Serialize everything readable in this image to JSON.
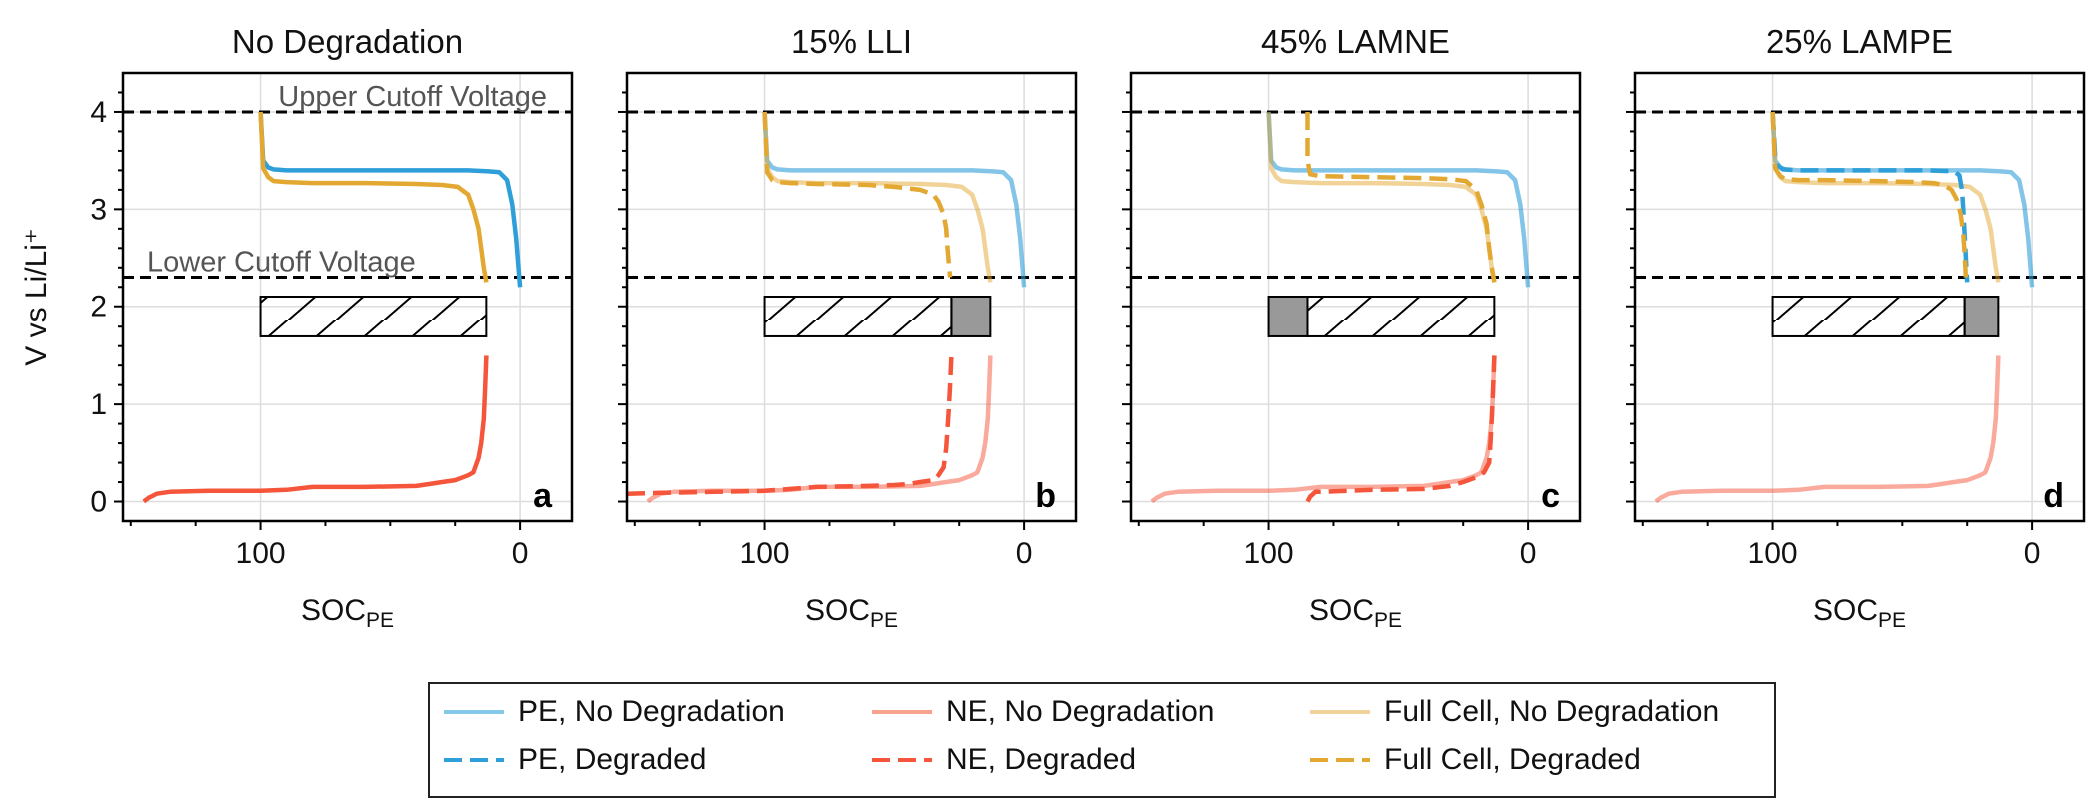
{
  "colors": {
    "pe": "#2e9fd8",
    "ne": "#f5553a",
    "full": "#e3a832",
    "cutoff": "#000000",
    "grid": "#dddddd",
    "bar_fill": "#999999"
  },
  "y_label": "V vs Li/Li⁺",
  "x_label_main": "SOC",
  "x_label_sub": "PE",
  "annotations": {
    "upper": "Upper Cutoff Voltage",
    "lower": "Lower Cutoff Voltage"
  },
  "legend": {
    "items": [
      {
        "label": "PE, No Degradation",
        "color": "#86c8ea",
        "dash": false
      },
      {
        "label": "NE, No Degradation",
        "color": "#f8a290",
        "dash": false
      },
      {
        "label": "Full Cell, No Degradation",
        "color": "#f1d39b",
        "dash": false
      },
      {
        "label": "PE, Degraded",
        "color": "#2e9fd8",
        "dash": true
      },
      {
        "label": "NE, Degraded",
        "color": "#f5553a",
        "dash": true
      },
      {
        "label": "Full Cell, Degraded",
        "color": "#e3a832",
        "dash": true
      }
    ]
  },
  "chart_data": [
    {
      "type": "line",
      "title": "No Degradation",
      "panel_label": "a",
      "xlim": [
        153,
        -20
      ],
      "ylim": [
        -0.2,
        4.4
      ],
      "xticks": [
        100,
        0
      ],
      "yticks": [
        0,
        1,
        2,
        3,
        4
      ],
      "cutoffs": [
        4.0,
        2.3
      ],
      "capacity_bar": {
        "x_start": 100,
        "x_end": 13,
        "y": 1.9,
        "lost_left": 0,
        "lost_right": 0
      },
      "series": [
        {
          "role": "pe",
          "style": "solid",
          "alpha": 1,
          "x": [
            100,
            99,
            97,
            95,
            90,
            80,
            60,
            40,
            20,
            12,
            8,
            5,
            3,
            1.5,
            0
          ],
          "y": [
            4.0,
            3.5,
            3.43,
            3.41,
            3.4,
            3.4,
            3.4,
            3.4,
            3.4,
            3.39,
            3.38,
            3.3,
            3.05,
            2.7,
            2.2
          ]
        },
        {
          "role": "full",
          "style": "solid",
          "alpha": 1,
          "x": [
            100,
            99,
            97,
            95,
            90,
            80,
            60,
            40,
            30,
            24,
            20,
            18,
            16,
            15,
            14,
            13
          ],
          "y": [
            4.0,
            3.42,
            3.33,
            3.29,
            3.28,
            3.27,
            3.27,
            3.26,
            3.25,
            3.23,
            3.15,
            3.0,
            2.8,
            2.6,
            2.4,
            2.25
          ]
        },
        {
          "role": "ne",
          "style": "solid",
          "alpha": 1,
          "x": [
            145,
            143,
            140,
            135,
            120,
            100,
            90,
            80,
            60,
            40,
            35,
            30,
            25,
            22,
            20,
            18,
            16,
            15,
            14,
            13.5,
            13
          ],
          "y": [
            0,
            0.04,
            0.08,
            0.1,
            0.11,
            0.11,
            0.12,
            0.15,
            0.15,
            0.16,
            0.18,
            0.2,
            0.22,
            0.25,
            0.27,
            0.3,
            0.45,
            0.6,
            0.85,
            1.15,
            1.5
          ]
        }
      ]
    },
    {
      "type": "line",
      "title": "15% LLI",
      "panel_label": "b",
      "xlim": [
        153,
        -20
      ],
      "ylim": [
        -0.2,
        4.4
      ],
      "xticks": [
        100,
        0
      ],
      "yticks": [
        0,
        1,
        2,
        3,
        4
      ],
      "cutoffs": [
        4.0,
        2.3
      ],
      "capacity_bar": {
        "x_start": 100,
        "x_end": 13,
        "y": 1.9,
        "lost_left": 0,
        "lost_right": 15
      },
      "series": [
        {
          "role": "pe",
          "style": "solid",
          "alpha": 0.6,
          "x": [
            100,
            99,
            97,
            95,
            90,
            80,
            60,
            40,
            20,
            12,
            8,
            5,
            3,
            1.5,
            0
          ],
          "y": [
            4.0,
            3.5,
            3.43,
            3.41,
            3.4,
            3.4,
            3.4,
            3.4,
            3.4,
            3.39,
            3.38,
            3.3,
            3.05,
            2.7,
            2.2
          ]
        },
        {
          "role": "full",
          "style": "solid",
          "alpha": 0.5,
          "x": [
            100,
            99,
            97,
            95,
            90,
            80,
            60,
            40,
            30,
            24,
            20,
            18,
            16,
            15,
            14,
            13
          ],
          "y": [
            4.0,
            3.42,
            3.33,
            3.29,
            3.28,
            3.27,
            3.27,
            3.26,
            3.25,
            3.23,
            3.15,
            3.0,
            2.8,
            2.6,
            2.4,
            2.25
          ]
        },
        {
          "role": "ne",
          "style": "solid",
          "alpha": 0.5,
          "x": [
            145,
            143,
            140,
            135,
            120,
            100,
            90,
            80,
            60,
            40,
            35,
            30,
            25,
            22,
            20,
            18,
            16,
            15,
            14,
            13.5,
            13
          ],
          "y": [
            0,
            0.04,
            0.08,
            0.1,
            0.11,
            0.11,
            0.12,
            0.15,
            0.15,
            0.16,
            0.18,
            0.2,
            0.22,
            0.25,
            0.27,
            0.3,
            0.45,
            0.6,
            0.85,
            1.15,
            1.5
          ]
        },
        {
          "role": "full",
          "style": "dashed",
          "alpha": 1,
          "x": [
            100,
            99,
            97,
            95,
            90,
            80,
            60,
            50,
            40,
            35,
            33,
            31,
            30,
            29.5,
            29,
            28.5
          ],
          "y": [
            4.0,
            3.38,
            3.3,
            3.28,
            3.27,
            3.26,
            3.25,
            3.23,
            3.2,
            3.15,
            3.08,
            2.95,
            2.8,
            2.6,
            2.45,
            2.3
          ]
        },
        {
          "role": "ne",
          "style": "dashed",
          "alpha": 1,
          "x": [
            153,
            140,
            120,
            100,
            90,
            80,
            60,
            50,
            45,
            40,
            35,
            33,
            31,
            30,
            29.5,
            29,
            28.5,
            28
          ],
          "y": [
            0.08,
            0.09,
            0.1,
            0.11,
            0.13,
            0.15,
            0.16,
            0.17,
            0.18,
            0.2,
            0.22,
            0.27,
            0.35,
            0.55,
            0.75,
            0.95,
            1.2,
            1.5
          ]
        }
      ]
    },
    {
      "type": "line",
      "title": "45% LAMNE",
      "panel_label": "c",
      "xlim": [
        153,
        -20
      ],
      "ylim": [
        -0.2,
        4.4
      ],
      "xticks": [
        100,
        0
      ],
      "yticks": [
        0,
        1,
        2,
        3,
        4
      ],
      "cutoffs": [
        4.0,
        2.3
      ],
      "capacity_bar": {
        "x_start": 100,
        "x_end": 13,
        "y": 1.9,
        "lost_left": 15,
        "lost_right": 0
      },
      "series": [
        {
          "role": "pe",
          "style": "solid",
          "alpha": 0.6,
          "x": [
            100,
            99,
            97,
            95,
            90,
            80,
            60,
            40,
            20,
            12,
            8,
            5,
            3,
            1.5,
            0
          ],
          "y": [
            4.0,
            3.5,
            3.43,
            3.41,
            3.4,
            3.4,
            3.4,
            3.4,
            3.4,
            3.39,
            3.38,
            3.3,
            3.05,
            2.7,
            2.2
          ]
        },
        {
          "role": "full",
          "style": "solid",
          "alpha": 0.5,
          "x": [
            100,
            99,
            97,
            95,
            90,
            80,
            60,
            40,
            30,
            24,
            20,
            18,
            16,
            15,
            14,
            13
          ],
          "y": [
            4.0,
            3.42,
            3.33,
            3.29,
            3.28,
            3.27,
            3.27,
            3.26,
            3.25,
            3.23,
            3.15,
            3.0,
            2.8,
            2.6,
            2.4,
            2.25
          ]
        },
        {
          "role": "ne",
          "style": "solid",
          "alpha": 0.5,
          "x": [
            145,
            143,
            140,
            135,
            120,
            100,
            90,
            80,
            60,
            40,
            35,
            30,
            25,
            22,
            20,
            18,
            16,
            15,
            14,
            13.5,
            13
          ],
          "y": [
            0,
            0.04,
            0.08,
            0.1,
            0.11,
            0.11,
            0.12,
            0.15,
            0.15,
            0.16,
            0.18,
            0.2,
            0.22,
            0.25,
            0.27,
            0.3,
            0.45,
            0.6,
            0.85,
            1.15,
            1.5
          ]
        },
        {
          "role": "full",
          "style": "dashed",
          "alpha": 1,
          "x": [
            85,
            85,
            84,
            80,
            60,
            40,
            30,
            24,
            20,
            18,
            16,
            15,
            14,
            13
          ],
          "y": [
            4.0,
            3.5,
            3.36,
            3.34,
            3.33,
            3.32,
            3.31,
            3.29,
            3.2,
            3.05,
            2.85,
            2.6,
            2.4,
            2.25
          ]
        },
        {
          "role": "ne",
          "style": "dashed",
          "alpha": 1,
          "x": [
            85,
            84,
            82,
            80,
            60,
            40,
            30,
            25,
            20,
            17,
            15,
            14.5,
            14,
            13.5,
            13
          ],
          "y": [
            0,
            0.05,
            0.1,
            0.1,
            0.12,
            0.13,
            0.16,
            0.2,
            0.25,
            0.3,
            0.4,
            0.6,
            0.85,
            1.15,
            1.5
          ]
        }
      ]
    },
    {
      "type": "line",
      "title": "25% LAMPE",
      "panel_label": "d",
      "xlim": [
        153,
        -20
      ],
      "ylim": [
        -0.2,
        4.4
      ],
      "xticks": [
        100,
        0
      ],
      "yticks": [
        0,
        1,
        2,
        3,
        4
      ],
      "cutoffs": [
        4.0,
        2.3
      ],
      "capacity_bar": {
        "x_start": 100,
        "x_end": 13,
        "y": 1.9,
        "lost_left": 0,
        "lost_right": 13
      },
      "series": [
        {
          "role": "pe",
          "style": "solid",
          "alpha": 0.6,
          "x": [
            100,
            99,
            97,
            95,
            90,
            80,
            60,
            40,
            20,
            12,
            8,
            5,
            3,
            1.5,
            0
          ],
          "y": [
            4.0,
            3.5,
            3.43,
            3.41,
            3.4,
            3.4,
            3.4,
            3.4,
            3.4,
            3.39,
            3.38,
            3.3,
            3.05,
            2.7,
            2.2
          ]
        },
        {
          "role": "full",
          "style": "solid",
          "alpha": 0.5,
          "x": [
            100,
            99,
            97,
            95,
            90,
            80,
            60,
            40,
            30,
            24,
            20,
            18,
            16,
            15,
            14,
            13
          ],
          "y": [
            4.0,
            3.42,
            3.33,
            3.29,
            3.28,
            3.27,
            3.27,
            3.26,
            3.25,
            3.23,
            3.15,
            3.0,
            2.8,
            2.6,
            2.4,
            2.25
          ]
        },
        {
          "role": "ne",
          "style": "solid",
          "alpha": 0.5,
          "x": [
            145,
            143,
            140,
            135,
            120,
            100,
            90,
            80,
            60,
            40,
            35,
            30,
            25,
            22,
            20,
            18,
            16,
            15,
            14,
            13.5,
            13
          ],
          "y": [
            0,
            0.04,
            0.08,
            0.1,
            0.11,
            0.11,
            0.12,
            0.15,
            0.15,
            0.16,
            0.18,
            0.2,
            0.22,
            0.25,
            0.27,
            0.3,
            0.45,
            0.6,
            0.85,
            1.15,
            1.5
          ]
        },
        {
          "role": "pe",
          "style": "dashed",
          "alpha": 1,
          "x": [
            100,
            99,
            98,
            96,
            90,
            60,
            40,
            30,
            28,
            27,
            26.5,
            26,
            25.5,
            25
          ],
          "y": [
            4.0,
            3.55,
            3.45,
            3.41,
            3.4,
            3.4,
            3.4,
            3.39,
            3.35,
            3.2,
            3.0,
            2.75,
            2.5,
            2.25
          ]
        },
        {
          "role": "full",
          "style": "dashed",
          "alpha": 1,
          "x": [
            100,
            99,
            97,
            95,
            90,
            80,
            60,
            45,
            38,
            34,
            31,
            29,
            27.5,
            26.5,
            26,
            25.5
          ],
          "y": [
            4.0,
            3.42,
            3.34,
            3.31,
            3.3,
            3.3,
            3.29,
            3.28,
            3.27,
            3.25,
            3.2,
            3.1,
            2.95,
            2.75,
            2.55,
            2.3
          ]
        }
      ]
    }
  ]
}
